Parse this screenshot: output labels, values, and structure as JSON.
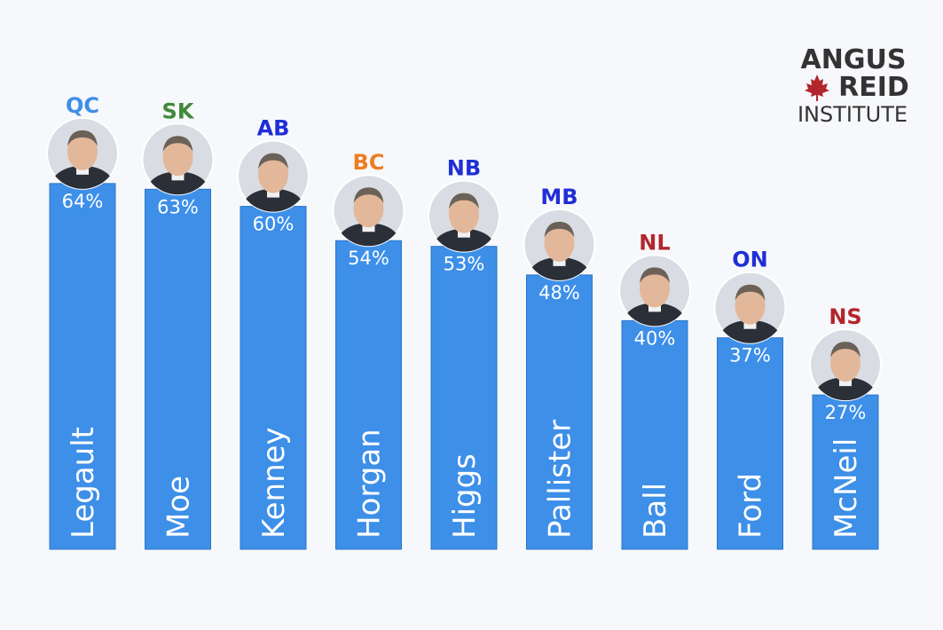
{
  "logo": {
    "line1": "ANGUS",
    "line2": "REID",
    "line3": "INSTITUTE",
    "text_color": "#333333",
    "leaf_color": "#b3262d"
  },
  "colors": {
    "bar_fill": "#3d8fe8",
    "bar_stroke": "#2a76c9",
    "value_text": "#ffffff",
    "name_text": "#ffffff"
  },
  "chart_data": {
    "type": "bar",
    "categories": [
      "Legault",
      "Moe",
      "Kenney",
      "Horgan",
      "Higgs",
      "Pallister",
      "Ball",
      "Ford",
      "McNeil"
    ],
    "provinces": [
      "QC",
      "SK",
      "AB",
      "BC",
      "NB",
      "MB",
      "NL",
      "ON",
      "NS"
    ],
    "province_colors": [
      "#3d8fe8",
      "#3f8a3a",
      "#1f2fd6",
      "#ee7d22",
      "#1f2fd6",
      "#1f2fd6",
      "#b3262d",
      "#1f2fd6",
      "#b3262d"
    ],
    "values": [
      64,
      63,
      60,
      54,
      53,
      48,
      40,
      37,
      27
    ],
    "value_labels": [
      "64%",
      "63%",
      "60%",
      "54%",
      "53%",
      "48%",
      "40%",
      "37%",
      "27%"
    ],
    "ylim": [
      0,
      100
    ],
    "grid": false,
    "legend": "none"
  }
}
